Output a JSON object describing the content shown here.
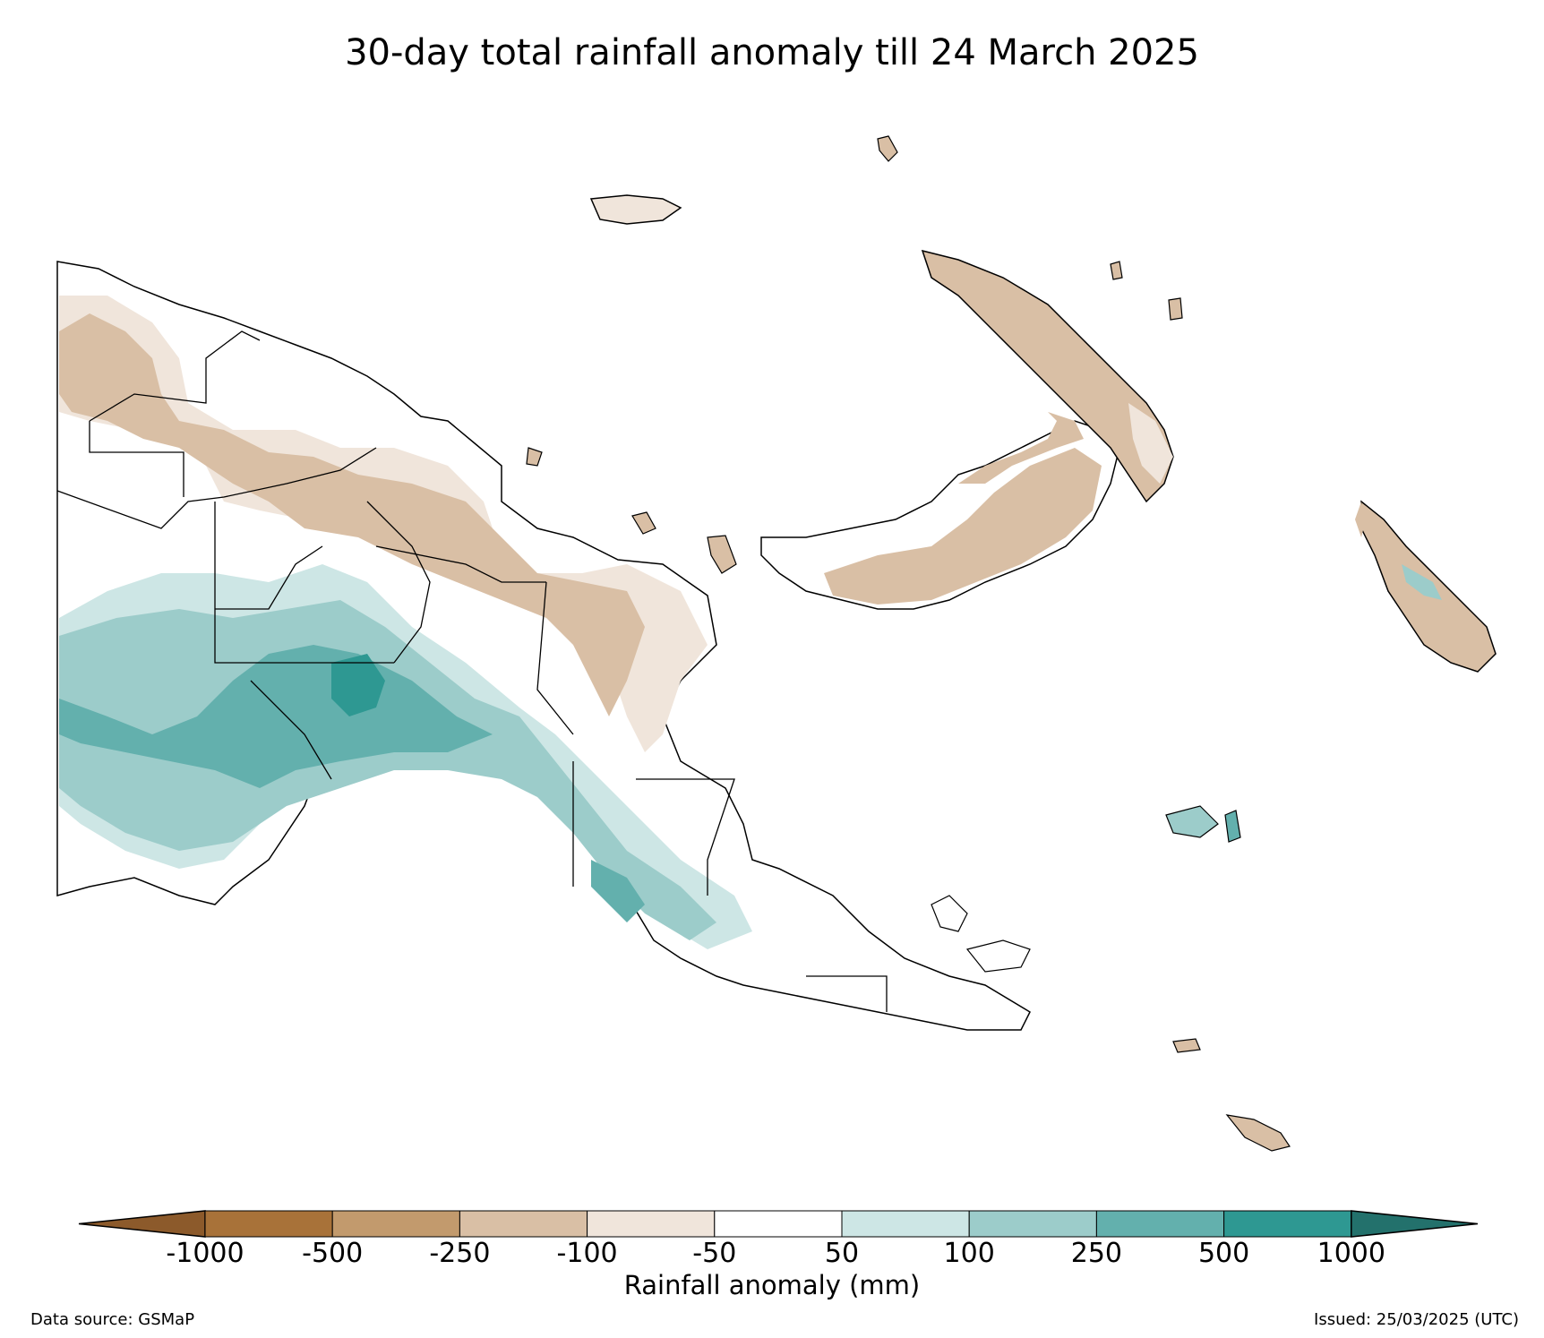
{
  "title": "30-day total rainfall anomaly till 24 March 2025",
  "colorbar": {
    "label": "Rainfall anomaly (mm)",
    "ticks": [
      "-1000",
      "-500",
      "-250",
      "-100",
      "-50",
      "50",
      "100",
      "250",
      "500",
      "1000"
    ],
    "extend_low_color": "#8c5a2b",
    "extend_high_color": "#23716c",
    "bins": [
      {
        "from": "-1000",
        "to": "-500",
        "color": "#a87239"
      },
      {
        "from": "-500",
        "to": "-250",
        "color": "#c29a6d"
      },
      {
        "from": "-250",
        "to": "-100",
        "color": "#d9bfa5"
      },
      {
        "from": "-100",
        "to": "-50",
        "color": "#f0e5db"
      },
      {
        "from": "-50",
        "to": "50",
        "color": "#ffffff"
      },
      {
        "from": "50",
        "to": "100",
        "color": "#cde6e5"
      },
      {
        "from": "100",
        "to": "250",
        "color": "#9cccca"
      },
      {
        "from": "250",
        "to": "500",
        "color": "#63b0ad"
      },
      {
        "from": "500",
        "to": "1000",
        "color": "#2e9892"
      }
    ]
  },
  "source": "Data source: GSMaP",
  "issued": "Issued: 25/03/2025 (UTC)"
}
